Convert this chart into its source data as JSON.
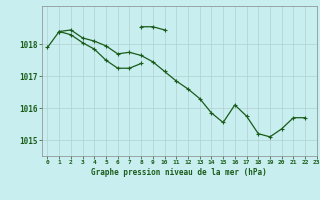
{
  "title": "Graphe pression niveau de la mer (hPa)",
  "background_color": "#c8eef0",
  "grid_color": "#b0d0d0",
  "line_color": "#1a5c1a",
  "xlim": [
    -0.5,
    23
  ],
  "ylim": [
    1014.5,
    1019.2
  ],
  "yticks": [
    1015,
    1016,
    1017,
    1018
  ],
  "xticks": [
    0,
    1,
    2,
    3,
    4,
    5,
    6,
    7,
    8,
    9,
    10,
    11,
    12,
    13,
    14,
    15,
    16,
    17,
    18,
    19,
    20,
    21,
    22,
    23
  ],
  "series1_x": [
    0,
    1,
    2,
    3,
    4,
    5,
    6,
    7,
    8,
    9,
    10,
    11,
    12,
    13,
    14,
    15,
    16,
    17,
    18,
    19,
    20,
    21,
    22
  ],
  "series1_y": [
    1017.9,
    1018.4,
    1018.45,
    1018.2,
    1018.1,
    1017.95,
    1017.7,
    1017.75,
    1017.65,
    1017.45,
    1017.15,
    1016.85,
    1016.6,
    1016.3,
    1015.85,
    1015.55,
    1016.1,
    1015.75,
    1015.2,
    1015.1,
    1015.35,
    1015.7,
    1015.7
  ],
  "series2_x": [
    8,
    9,
    10
  ],
  "series2_y": [
    1018.55,
    1018.55,
    1018.45
  ],
  "series3_x": [
    1,
    2,
    3,
    4,
    5,
    6,
    7,
    8
  ],
  "series3_y": [
    1018.4,
    1018.3,
    1018.05,
    1017.85,
    1017.5,
    1017.25,
    1017.25,
    1017.4
  ]
}
